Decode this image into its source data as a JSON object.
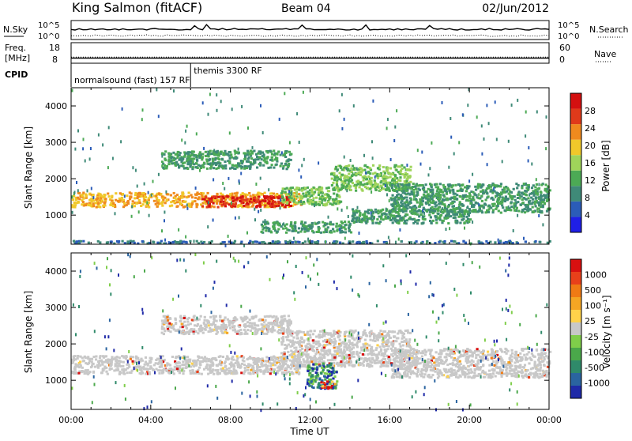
{
  "header": {
    "station": "King Salmon (fitACF)",
    "beam": "Beam 04",
    "date": "02/Jun/2012"
  },
  "colors": {
    "power": [
      "#1f1fe6",
      "#2b5cb8",
      "#3f8a78",
      "#4caa55",
      "#9fd45a",
      "#f0c82a",
      "#f08a1e",
      "#e03a1a",
      "#d41010"
    ],
    "velocity_pos": [
      "#1f2aa8",
      "#2a64a0",
      "#2f8a6a",
      "#4aa84a",
      "#7fce4a"
    ],
    "velocity_neutral": "#c8c8c8",
    "velocity_neg": [
      "#ffd24a",
      "#f5a623",
      "#f07a14",
      "#e8401a",
      "#d81010"
    ],
    "ground_scatter": "#c8c8c8"
  },
  "chart_data": [
    {
      "type": "line",
      "panel": "noise",
      "left_label": "N.Sky",
      "right_label": "N.Search",
      "left_ticks": [
        "10^5",
        "10^0"
      ],
      "right_ticks": [
        "10^5",
        "10^0"
      ],
      "series": [
        {
          "name": "N.Sky",
          "style": "solid"
        },
        {
          "name": "N.Search",
          "style": "dotted"
        }
      ]
    },
    {
      "type": "line",
      "panel": "freq_nave",
      "left_label": [
        "Freq.",
        "[MHz]"
      ],
      "right_label": "Nave",
      "left_ticks": [
        "18",
        "8"
      ],
      "right_ticks": [
        "60",
        "0"
      ],
      "series": [
        {
          "name": "Freq.",
          "style": "solid",
          "value": 10.5
        },
        {
          "name": "Nave",
          "style": "dotted",
          "value": 18
        }
      ]
    },
    {
      "type": "table",
      "panel": "cpid",
      "label": "CPID",
      "entries": [
        {
          "text": "normalsound (fast) 157 RF",
          "start_hour": 0
        },
        {
          "text": "themis 3300 RF",
          "start_hour": 6
        }
      ]
    },
    {
      "type": "heatmap",
      "panel": "power",
      "ylabel": "Slant Range [km]",
      "ylim": [
        200,
        4500
      ],
      "yticks": [
        1000,
        2000,
        3000,
        4000
      ],
      "xlim": [
        0,
        24
      ],
      "colorbar_label": "Power [dB]",
      "colorbar_ticks": [
        "4",
        "8",
        "12",
        "16",
        "20",
        "24",
        "28"
      ],
      "features": [
        {
          "t0": 0,
          "t1": 11.5,
          "r0": 1250,
          "r1": 1650,
          "level": 5
        },
        {
          "t0": 6.5,
          "t1": 11,
          "r0": 1250,
          "r1": 1550,
          "level": 7
        },
        {
          "t0": 10.5,
          "t1": 13.5,
          "r0": 1300,
          "r1": 1800,
          "level": 3
        },
        {
          "t0": 13,
          "t1": 17,
          "r0": 1700,
          "r1": 2400,
          "level": 3
        },
        {
          "t0": 16,
          "t1": 24,
          "r0": 1100,
          "r1": 1900,
          "level": 2
        },
        {
          "t0": 4.5,
          "t1": 11,
          "r0": 2300,
          "r1": 2800,
          "level": 2
        },
        {
          "t0": 9.5,
          "t1": 14,
          "r0": 550,
          "r1": 850,
          "level": 2
        },
        {
          "t0": 14,
          "t1": 20,
          "r0": 800,
          "r1": 1200,
          "level": 2
        },
        {
          "t0": 0,
          "t1": 24,
          "r0": 250,
          "r1": 320,
          "level": 1
        }
      ]
    },
    {
      "type": "heatmap",
      "panel": "velocity",
      "ylabel": "Slant Range [km]",
      "ylim": [
        200,
        4500
      ],
      "yticks": [
        1000,
        2000,
        3000,
        4000
      ],
      "xlim": [
        0,
        24
      ],
      "xlabel": "Time UT",
      "xticks": [
        "00:00",
        "04:00",
        "08:00",
        "12:00",
        "16:00",
        "20:00",
        "00:00"
      ],
      "colorbar_label": "Velocity [m s⁻¹]",
      "colorbar_ticks": [
        "1000",
        "500",
        "100",
        "25",
        "-25",
        "-100",
        "-500",
        "-1000"
      ],
      "features": [
        {
          "t0": 0,
          "t1": 11.5,
          "r0": 1200,
          "r1": 1700,
          "level": 0
        },
        {
          "t0": 10.5,
          "t1": 17,
          "r0": 1400,
          "r1": 2400,
          "level": 0
        },
        {
          "t0": 16,
          "t1": 24,
          "r0": 1100,
          "r1": 1900,
          "level": 0
        },
        {
          "t0": 4.5,
          "t1": 11,
          "r0": 2300,
          "r1": 2800,
          "level": 0
        },
        {
          "t0": 11.8,
          "t1": 13.3,
          "r0": 800,
          "r1": 1500,
          "level": 1
        },
        {
          "t0": 12.5,
          "t1": 13.2,
          "r0": 800,
          "r1": 1000,
          "level": -1
        }
      ]
    }
  ]
}
